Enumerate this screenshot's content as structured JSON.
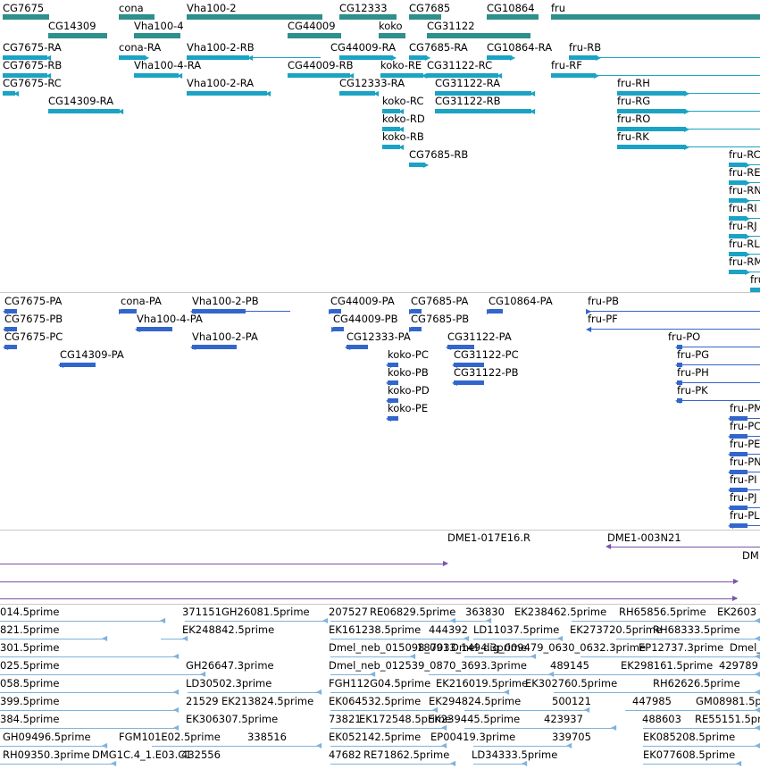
{
  "colors": {
    "gene": "#2e8f8b",
    "transcript": "#1aa3c4",
    "protein": "#3366cc",
    "clone": "#7a55a8",
    "est": "#7fb2dd",
    "separator": "#c8c8c8"
  },
  "tracks": {
    "genes": [
      {
        "label": "CG7675"
      },
      {
        "label": "cona"
      },
      {
        "label": "Vha100-2"
      },
      {
        "label": "CG12333"
      },
      {
        "label": "CG7685"
      },
      {
        "label": "CG10864"
      },
      {
        "label": "fru"
      },
      {
        "label": "CG14309"
      },
      {
        "label": "Vha100-4"
      },
      {
        "label": "CG44009"
      },
      {
        "label": "koko"
      },
      {
        "label": "CG31122"
      }
    ],
    "transcripts": [
      {
        "label": "CG7675-RA"
      },
      {
        "label": "cona-RA"
      },
      {
        "label": "Vha100-2-RB"
      },
      {
        "label": "CG44009-RA"
      },
      {
        "label": "CG7685-RA"
      },
      {
        "label": "CG10864-RA"
      },
      {
        "label": "fru-RB"
      },
      {
        "label": "CG7675-RB"
      },
      {
        "label": "Vha100-4-RA"
      },
      {
        "label": "CG44009-RB"
      },
      {
        "label": "koko-RE"
      },
      {
        "label": "CG31122-RC"
      },
      {
        "label": "fru-RF"
      },
      {
        "label": "CG7675-RC"
      },
      {
        "label": "Vha100-2-RA"
      },
      {
        "label": "CG12333-RA"
      },
      {
        "label": "CG31122-RA"
      },
      {
        "label": "fru-RH"
      },
      {
        "label": "CG14309-RA"
      },
      {
        "label": "koko-RC"
      },
      {
        "label": "CG31122-RB"
      },
      {
        "label": "fru-RG"
      },
      {
        "label": "koko-RD"
      },
      {
        "label": "fru-RO"
      },
      {
        "label": "koko-RB"
      },
      {
        "label": "fru-RK"
      },
      {
        "label": "CG7685-RB"
      },
      {
        "label": "fru-RC"
      },
      {
        "label": "fru-RE"
      },
      {
        "label": "fru-RN"
      },
      {
        "label": "fru-RI"
      },
      {
        "label": "fru-RJ"
      },
      {
        "label": "fru-RL"
      },
      {
        "label": "fru-RM"
      },
      {
        "label": "fru"
      }
    ],
    "proteins": [
      {
        "label": "CG7675-PA"
      },
      {
        "label": "cona-PA"
      },
      {
        "label": "Vha100-2-PB"
      },
      {
        "label": "CG44009-PA"
      },
      {
        "label": "CG7685-PA"
      },
      {
        "label": "CG10864-PA"
      },
      {
        "label": "fru-PB"
      },
      {
        "label": "CG7675-PB"
      },
      {
        "label": "Vha100-4-PA"
      },
      {
        "label": "CG44009-PB"
      },
      {
        "label": "CG7685-PB"
      },
      {
        "label": "fru-PF"
      },
      {
        "label": "CG7675-PC"
      },
      {
        "label": "Vha100-2-PA"
      },
      {
        "label": "CG12333-PA"
      },
      {
        "label": "CG31122-PA"
      },
      {
        "label": "fru-PO"
      },
      {
        "label": "CG14309-PA"
      },
      {
        "label": "koko-PC"
      },
      {
        "label": "CG31122-PC"
      },
      {
        "label": "fru-PG"
      },
      {
        "label": "koko-PB"
      },
      {
        "label": "CG31122-PB"
      },
      {
        "label": "fru-PH"
      },
      {
        "label": "koko-PD"
      },
      {
        "label": "fru-PK"
      },
      {
        "label": "koko-PE"
      },
      {
        "label": "fru-PM"
      },
      {
        "label": "fru-PC"
      },
      {
        "label": "fru-PE"
      },
      {
        "label": "fru-PN"
      },
      {
        "label": "fru-PI"
      },
      {
        "label": "fru-PJ"
      },
      {
        "label": "fru-PL"
      }
    ],
    "clones": [
      {
        "label": "DME1-017E16.R"
      },
      {
        "label": "DME1-003N21"
      },
      {
        "label": "DM"
      }
    ],
    "ests": [
      {
        "label": "014.5prime"
      },
      {
        "label": "371151"
      },
      {
        "label": "GH26081.5prime"
      },
      {
        "label": "207527"
      },
      {
        "label": "RE06829.5prime"
      },
      {
        "label": "363830"
      },
      {
        "label": "EK238462.5prime"
      },
      {
        "label": "RH65856.5prime"
      },
      {
        "label": "EK2603"
      },
      {
        "label": "821.5prime"
      },
      {
        "label": "EK248842.5prime"
      },
      {
        "label": "EK161238.5prime"
      },
      {
        "label": "444392"
      },
      {
        "label": "LD11037.5prime"
      },
      {
        "label": "EK273720.5prime"
      },
      {
        "label": "RH68333.5prime"
      },
      {
        "label": "301.5prime"
      },
      {
        "label": "Dmel_neb_015098_0913_1494.3prime"
      },
      {
        "label": "18703"
      },
      {
        "label": "Dmel_dig_009479_0630_0632.3prime"
      },
      {
        "label": "EP12737.3prime"
      },
      {
        "label": "Dmel_"
      },
      {
        "label": "025.5prime"
      },
      {
        "label": "GH26647.3prime"
      },
      {
        "label": "Dmel_neb_012539_0870_3693.3prime"
      },
      {
        "label": "489145"
      },
      {
        "label": "EK298161.5prime"
      },
      {
        "label": "429789"
      },
      {
        "label": "058.5prime"
      },
      {
        "label": "LD30502.3prime"
      },
      {
        "label": "FGH112G04.5prime"
      },
      {
        "label": "EK216019.5prime"
      },
      {
        "label": "EK302760.5prime"
      },
      {
        "label": "RH62626.5prime"
      },
      {
        "label": "399.5prime"
      },
      {
        "label": "21529"
      },
      {
        "label": "EK213824.5prime"
      },
      {
        "label": "EK064532.5prime"
      },
      {
        "label": "EK294824.5prime"
      },
      {
        "label": "500121"
      },
      {
        "label": "447985"
      },
      {
        "label": "GM08981.5prime"
      },
      {
        "label": "384.5prime"
      },
      {
        "label": "EK306307.5prime"
      },
      {
        "label": "73821"
      },
      {
        "label": "EK172548.5prime"
      },
      {
        "label": "EK239445.5prime"
      },
      {
        "label": "423937"
      },
      {
        "label": "488603"
      },
      {
        "label": "RE55151.5prime"
      },
      {
        "label": "GH09496.5prime"
      },
      {
        "label": "FGM101E02.5prime"
      },
      {
        "label": "338516"
      },
      {
        "label": "EK052142.5prime"
      },
      {
        "label": "EP00419.3prime"
      },
      {
        "label": "339705"
      },
      {
        "label": "EK085208.5prime"
      },
      {
        "label": "RH09350.3prime"
      },
      {
        "label": "DMG1C.4_1.E03.C1"
      },
      {
        "label": "432556"
      },
      {
        "label": "47682"
      },
      {
        "label": "RE71862.5prime"
      },
      {
        "label": "LD34333.5prime"
      },
      {
        "label": "EK077608.5prime"
      }
    ]
  }
}
